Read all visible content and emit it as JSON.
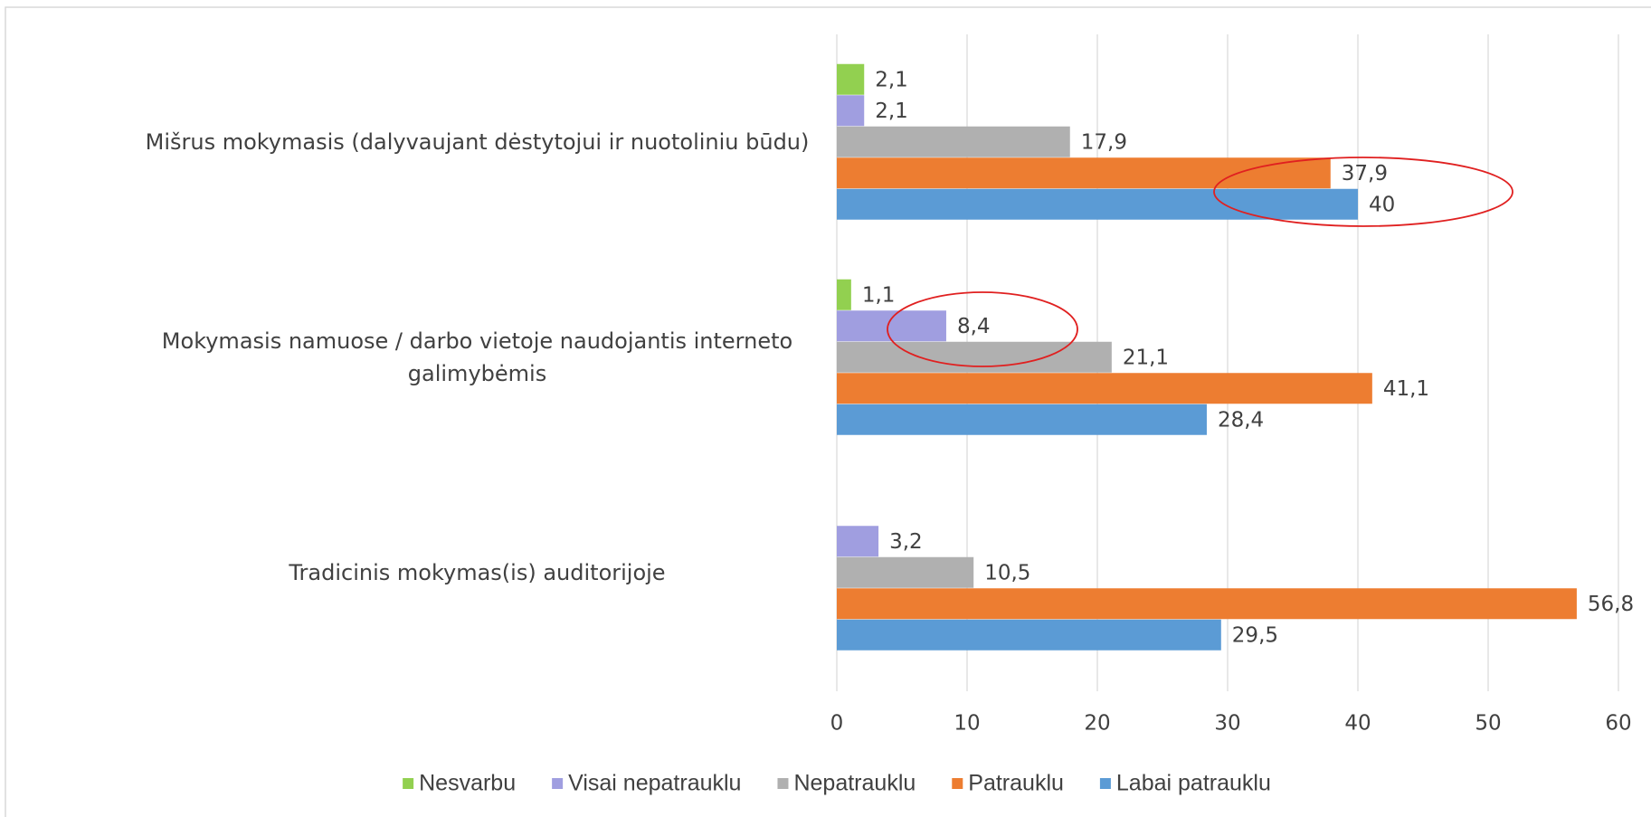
{
  "chart_data": {
    "type": "hbar",
    "categories": [
      "Mišrus mokymasis (dalyvaujant dėstytojui ir nuotoliniu būdu)",
      "Mokymasis namuose / darbo vietoje naudojantis interneto galimybėmis",
      "Tradicinis mokymas(is) auditorijoje"
    ],
    "series": [
      {
        "name": "Nesvarbu",
        "color": "#92d050",
        "values": [
          2.1,
          1.1,
          null
        ],
        "value_labels": [
          "2,1",
          "1,1",
          null
        ]
      },
      {
        "name": "Visai nepatrauklu",
        "color": "#a09ee0",
        "values": [
          2.1,
          8.4,
          3.2
        ],
        "value_labels": [
          "2,1",
          "8,4",
          "3,2"
        ]
      },
      {
        "name": "Nepatrauklu",
        "color": "#b0b0b0",
        "values": [
          17.9,
          21.1,
          10.5
        ],
        "value_labels": [
          "17,9",
          "21,1",
          "10,5"
        ]
      },
      {
        "name": "Patrauklu",
        "color": "#ed7d31",
        "values": [
          37.9,
          41.1,
          56.8
        ],
        "value_labels": [
          "37,9",
          "41,1",
          "56,8"
        ]
      },
      {
        "name": "Labai patrauklu",
        "color": "#5b9bd5",
        "values": [
          40,
          28.4,
          29.5
        ],
        "value_labels": [
          "40",
          "28,4",
          "29,5"
        ]
      }
    ],
    "xlim": [
      0,
      60
    ],
    "xticks": [
      0,
      10,
      20,
      30,
      40,
      50,
      60
    ],
    "grid": true,
    "legend": "bottom"
  }
}
